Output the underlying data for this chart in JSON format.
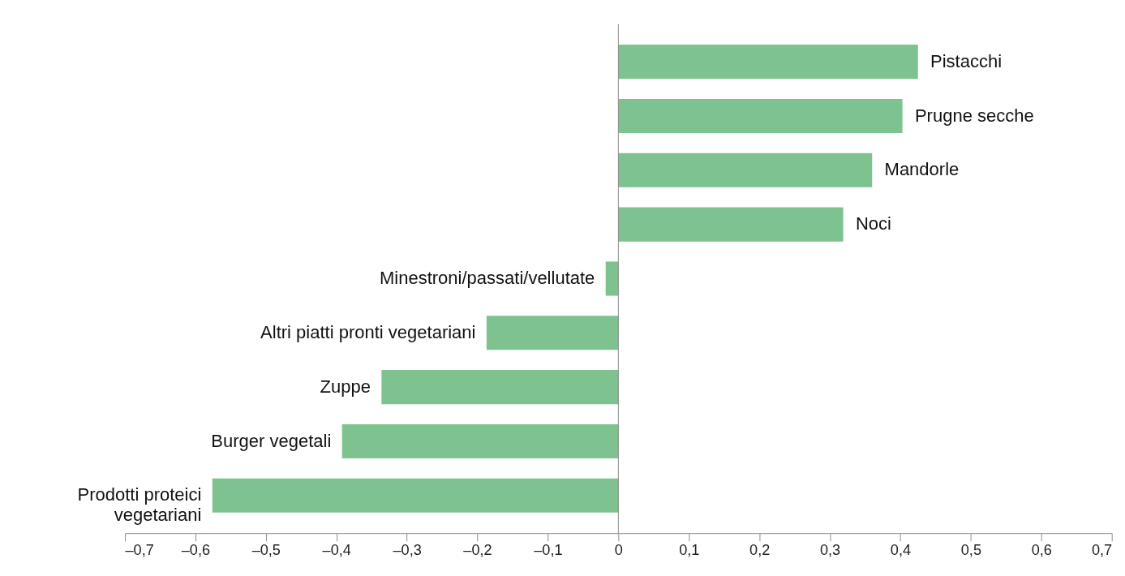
{
  "chart_data": {
    "type": "bar",
    "orientation": "horizontal",
    "categories": [
      "Pistacchi",
      "Prugne secche",
      "Mandorle",
      "Noci",
      "Minestroni/passati/vellutate",
      "Altri piatti pronti vegetariani",
      "Zuppe",
      "Burger vegetali",
      "Prodotti proteici vegetariani"
    ],
    "values": [
      0.425,
      0.403,
      0.36,
      0.319,
      -0.018,
      -0.187,
      -0.336,
      -0.392,
      -0.576
    ],
    "color": "#7dc28f",
    "xlim": [
      -0.7,
      0.7
    ],
    "xticks": [
      {
        "value": -0.7,
        "label": "–0,7"
      },
      {
        "value": -0.6,
        "label": "–0,6"
      },
      {
        "value": -0.5,
        "label": "–0,5"
      },
      {
        "value": -0.4,
        "label": "–0,4"
      },
      {
        "value": -0.3,
        "label": "–0,3"
      },
      {
        "value": -0.2,
        "label": "–0,2"
      },
      {
        "value": -0.1,
        "label": "–0,1"
      },
      {
        "value": 0,
        "label": "0"
      },
      {
        "value": 0.1,
        "label": "0,1"
      },
      {
        "value": 0.2,
        "label": "0,2"
      },
      {
        "value": 0.3,
        "label": "0,3"
      },
      {
        "value": 0.4,
        "label": "0,4"
      },
      {
        "value": 0.5,
        "label": "0,5"
      },
      {
        "value": 0.6,
        "label": "0,6"
      },
      {
        "value": 0.7,
        "label": "0,7"
      }
    ],
    "ref_lines": [
      {
        "axis": "x",
        "value": 0,
        "color": "#888888"
      }
    ],
    "tick_labels": "x"
  }
}
